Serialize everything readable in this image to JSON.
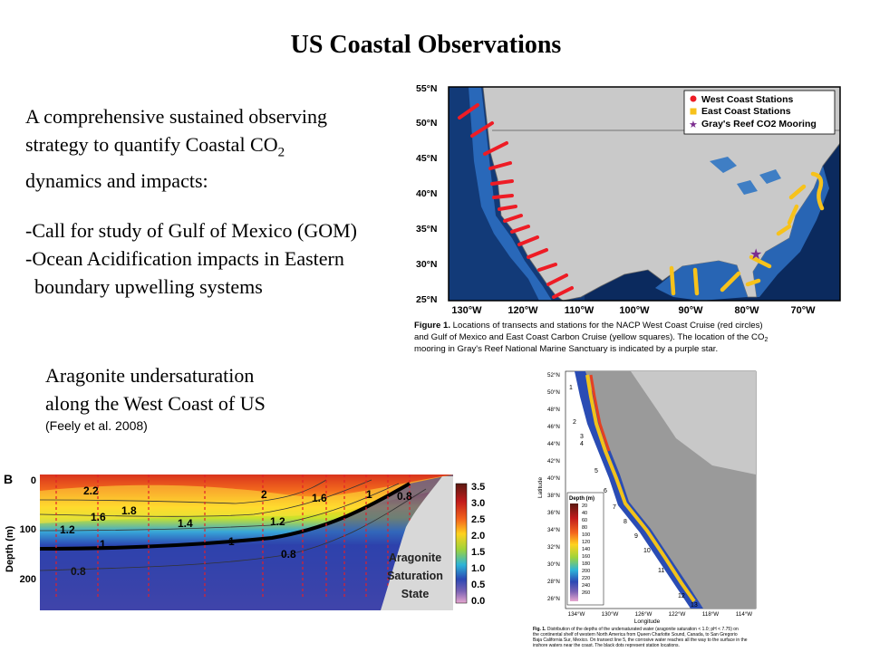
{
  "slide": {
    "title": "US Coastal Observations",
    "intro": {
      "line1": "A comprehensive sustained observing",
      "line2_pre": "strategy to quantify Coastal CO",
      "line2_sub": "2",
      "line3": "dynamics and impacts:"
    },
    "bullets": [
      "-Call for study of Gulf of Mexico (GOM)",
      "-Ocean Acidification impacts in Eastern",
      "boundary upwelling systems"
    ],
    "aragonite": {
      "line1": "Aragonite undersaturation",
      "line2": "along the West Coast of US",
      "citation": "(Feely et al. 2008)"
    }
  },
  "map1": {
    "lat_labels": [
      "55°N",
      "50°N",
      "45°N",
      "40°N",
      "35°N",
      "30°N",
      "25°N"
    ],
    "lon_labels": [
      "130°W",
      "120°W",
      "110°W",
      "100°W",
      "90°W",
      "80°W",
      "70°W"
    ],
    "legend": [
      "West Coast Stations",
      "East Coast Stations",
      "Gray's Reef CO2 Mooring"
    ],
    "caption": {
      "lead": "Figure 1.",
      "text1": "Locations of transects and stations for the NACP West Coast Cruise (red circles)",
      "text2": "and Gulf of Mexico and East Coast Carbon Cruise (yellow squares). The location of the CO",
      "sub": "2",
      "text3": "mooring in Gray's Reef National Marine Sanctuary is indicated by a purple star."
    },
    "colors": {
      "red": "#ee1c25",
      "yellow": "#f7c21b",
      "purple": "#7b2c8f"
    }
  },
  "section": {
    "panel_letter": "B",
    "ylabel": "Depth (m)",
    "y_ticks": [
      "0",
      "100",
      "200"
    ],
    "contour_labels": [
      "2.2",
      "1.8",
      "1.6",
      "1.4",
      "1.2",
      "1",
      "2",
      "1.6",
      "1.2",
      "1",
      "0.8",
      "0.8",
      "1",
      "0.8",
      "1"
    ],
    "overlay": [
      "Aragonite",
      "Saturation",
      "State"
    ],
    "colorbar_ticks": [
      "3.5",
      "3.0",
      "2.5",
      "2.0",
      "1.5",
      "1.0",
      "0.5",
      "0.0"
    ]
  },
  "map2": {
    "lat_labels": [
      "52°N",
      "50°N",
      "48°N",
      "46°N",
      "44°N",
      "42°N",
      "40°N",
      "38°N",
      "36°N",
      "34°N",
      "32°N",
      "30°N",
      "28°N",
      "26°N"
    ],
    "lon_labels": [
      "134°W",
      "130°W",
      "126°W",
      "122°W",
      "118°W",
      "114°W"
    ],
    "xlabel": "Longitude",
    "ylabel": "Latitude",
    "line_numbers": [
      "1",
      "2",
      "3",
      "4",
      "5",
      "6",
      "7",
      "8",
      "9",
      "10",
      "11",
      "12",
      "13"
    ],
    "legend_title": "Depth (m)",
    "legend_values": [
      "20",
      "40",
      "60",
      "80",
      "100",
      "120",
      "140",
      "160",
      "180",
      "200",
      "220",
      "240",
      "260"
    ],
    "caption": {
      "lead": "Fig. 1.",
      "l1": "Distribution of the depths of the undersaturated water (aragonite saturation < 1.0; pH < 7.75) on",
      "l2": "the continental shelf of western North America from Queen Charlotte Sound, Canada, to San Gregorio",
      "l3": "Baja California Sur, Mexico. On transect line 5, the corrosive water reaches all the way to the surface in the",
      "l4": "inshore waters near the coast. The black dots represent station locations."
    }
  }
}
